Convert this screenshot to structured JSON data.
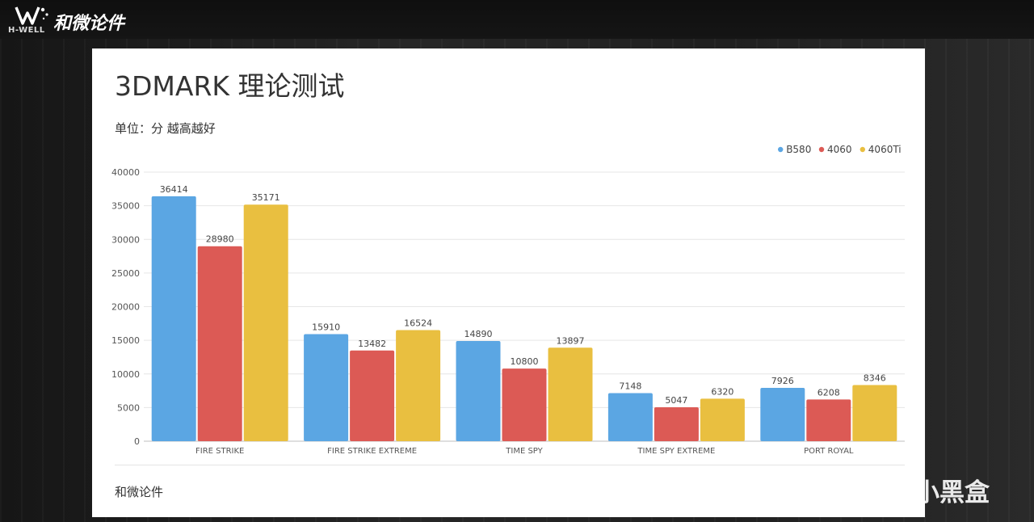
{
  "brand": {
    "name_cn": "和微论件",
    "name_en": "H-WELL"
  },
  "slide": {
    "title": "3DMARK 理论测试",
    "subtitle": "单位：分 越高越好",
    "footer": "和微论件"
  },
  "watermark": {
    "text": "小黑盒"
  },
  "colors": {
    "B580": "#5ba6e3",
    "4060": "#dc5a55",
    "4060Ti": "#e9bf40"
  },
  "chart_data": {
    "type": "bar",
    "title": "3DMARK 理论测试",
    "categories": [
      "FIRE STRIKE",
      "FIRE STRIKE EXTREME",
      "TIME SPY",
      "TIME SPY EXTREME",
      "PORT ROYAL"
    ],
    "series": [
      {
        "name": "B580",
        "values": [
          36414,
          15910,
          14890,
          7148,
          7926
        ]
      },
      {
        "name": "4060",
        "values": [
          28980,
          13482,
          10800,
          5047,
          6208
        ]
      },
      {
        "name": "4060Ti",
        "values": [
          35171,
          16524,
          13897,
          6320,
          8346
        ]
      }
    ],
    "ylim": [
      0,
      40000
    ],
    "yticks": [
      0,
      5000,
      10000,
      15000,
      20000,
      25000,
      30000,
      35000,
      40000
    ],
    "grid": true,
    "legend_position": "top-right",
    "data_labels": true
  }
}
